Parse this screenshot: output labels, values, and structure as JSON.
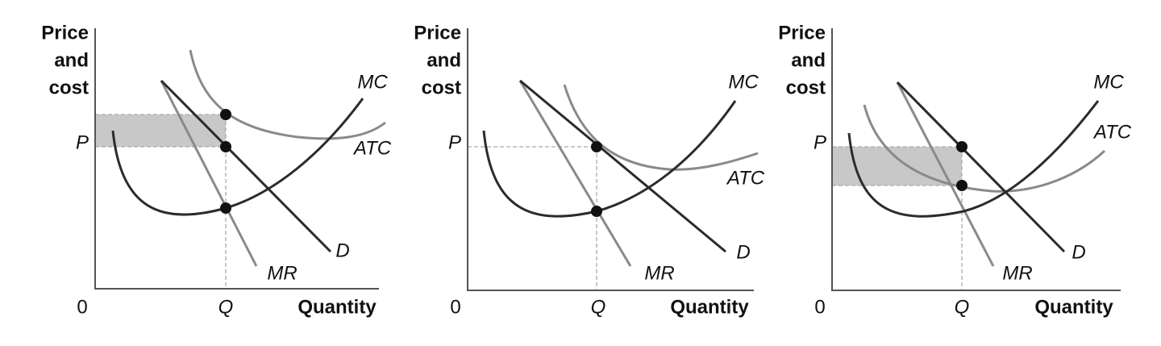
{
  "panels": [
    {
      "y_axis_label": [
        "Price",
        "and",
        "cost"
      ],
      "origin": "0",
      "x_axis_label": "Quantity",
      "price_label": "P",
      "quantity_label": "Q",
      "curves": {
        "mc": "MC",
        "atc": "ATC",
        "demand": "D",
        "mr": "MR"
      }
    },
    {
      "y_axis_label": [
        "Price",
        "and",
        "cost"
      ],
      "origin": "0",
      "x_axis_label": "Quantity",
      "price_label": "P",
      "quantity_label": "Q",
      "curves": {
        "mc": "MC",
        "atc": "ATC",
        "demand": "D",
        "mr": "MR"
      }
    },
    {
      "y_axis_label": [
        "Price",
        "and",
        "cost"
      ],
      "origin": "0",
      "x_axis_label": "Quantity",
      "price_label": "P",
      "quantity_label": "Q",
      "curves": {
        "mc": "MC",
        "atc": "ATC",
        "demand": "D",
        "mr": "MR"
      }
    }
  ]
}
